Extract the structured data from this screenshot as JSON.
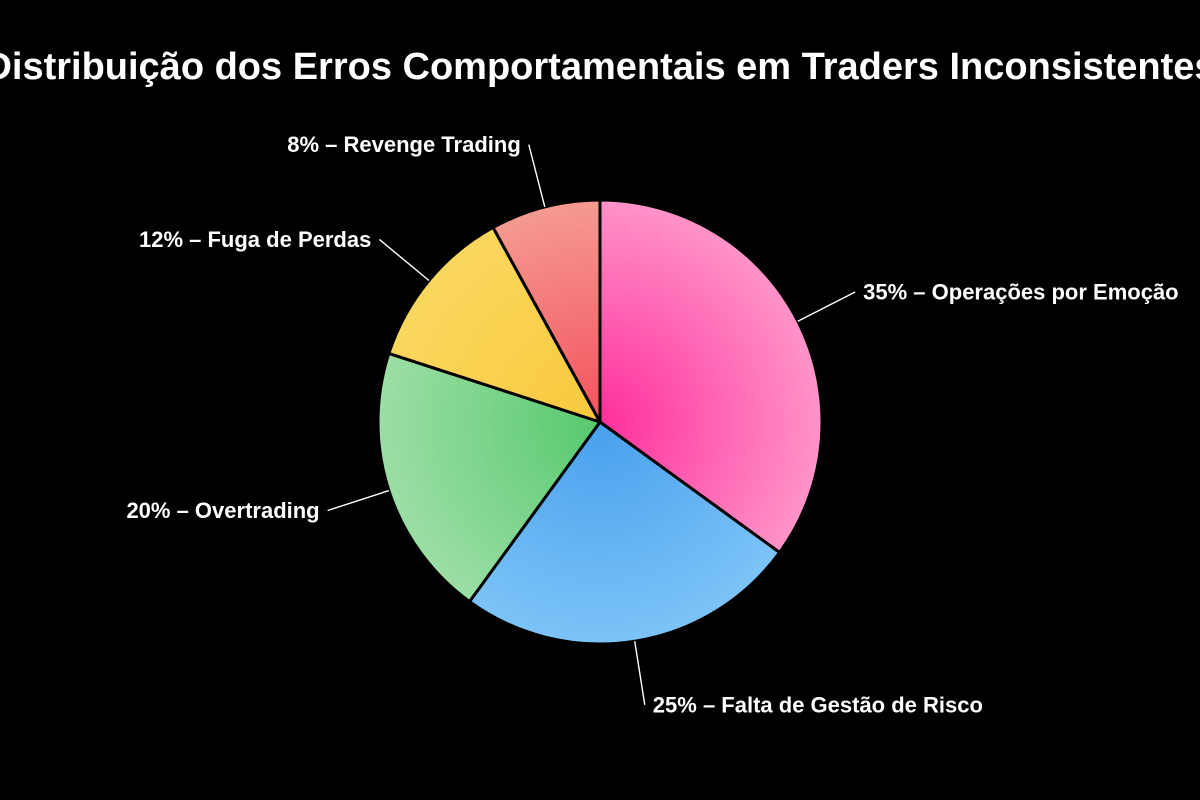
{
  "page": {
    "background_color": "#000000",
    "text_color": "#ffffff"
  },
  "chart_data": {
    "type": "pie",
    "title": "Distribuição dos Erros Comportamentais em Traders Inconsistentes",
    "unit": "%",
    "label_separator": " – ",
    "categories": [
      "Operações por Emoção",
      "Falta de Gestão de Risco",
      "Overtrading",
      "Fuga de Perdas",
      "Revenge Trading"
    ],
    "values": [
      35,
      25,
      20,
      12,
      8
    ],
    "slices": [
      {
        "label": "Operações por Emoção",
        "value": 35,
        "display_label": "35% – Operações por Emoção",
        "color_inner": "#ff2f9c",
        "color_outer": "#ff93c9"
      },
      {
        "label": "Falta de Gestão de Risco",
        "value": 25,
        "display_label": "25% – Falta de Gestão de Risco",
        "color_inner": "#47a0ed",
        "color_outer": "#7cc3f7"
      },
      {
        "label": "Overtrading",
        "value": 20,
        "display_label": "20% – Overtrading",
        "color_inner": "#57c96e",
        "color_outer": "#9cdea5"
      },
      {
        "label": "Fuga de Perdas",
        "value": 12,
        "display_label": "12% – Fuga de Perdas",
        "color_inner": "#f8c83c",
        "color_outer": "#fbd75e"
      },
      {
        "label": "Revenge Trading",
        "value": 8,
        "display_label": "8% – Revenge Trading",
        "color_inner": "#f4515c",
        "color_outer": "#f59a90"
      }
    ],
    "colors": {
      "background": "#000000",
      "text": "#ffffff",
      "slice_stroke": "#000000",
      "leader_line": "#ffffff"
    },
    "layout_hints": {
      "start_angle": "top",
      "direction": "clockwise",
      "labels": "outside-with-leader-lines",
      "legend": "none",
      "gradient": "radial-inner-dark-to-outer-light"
    }
  }
}
